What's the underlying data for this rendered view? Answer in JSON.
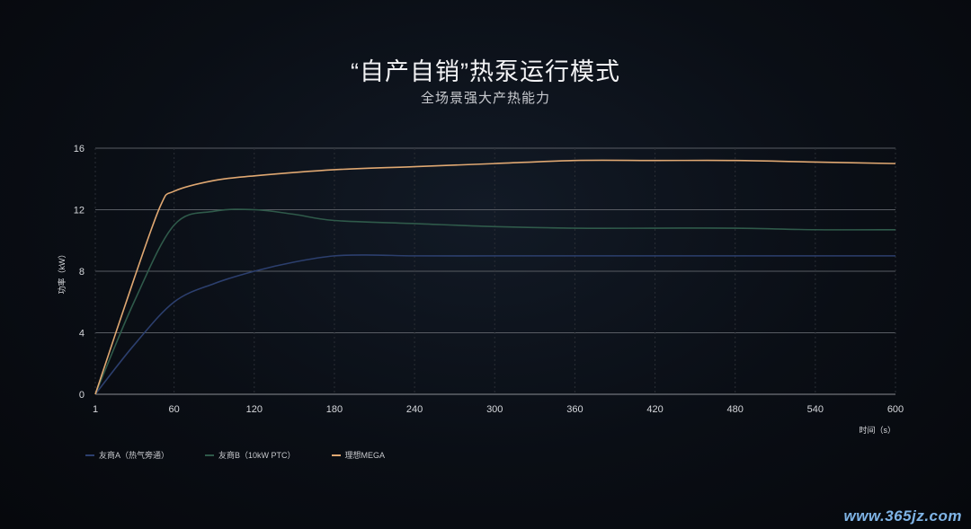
{
  "title": "“自产自销”热泵运行模式",
  "subtitle": "全场景强大产热能力",
  "watermark": "www.365jz.com",
  "chart_data": {
    "type": "line",
    "ylabel": "功率（kW）",
    "xlabel": "时间（s）",
    "x_ticks": [
      "1",
      "60",
      "120",
      "180",
      "240",
      "300",
      "360",
      "420",
      "480",
      "540",
      "600"
    ],
    "y_ticks": [
      "0",
      "4",
      "8",
      "12",
      "16"
    ],
    "xlim": [
      1,
      600
    ],
    "ylim": [
      0,
      16
    ],
    "grid": true,
    "legend_position": "bottom-left",
    "series": [
      {
        "name": "友商A（热气旁通）",
        "color": "#2c3f6e",
        "x": [
          1,
          30,
          60,
          90,
          120,
          150,
          180,
          210,
          240,
          300,
          360,
          420,
          480,
          540,
          600
        ],
        "y": [
          0,
          3.2,
          6.0,
          7.2,
          8.0,
          8.6,
          9.0,
          9.05,
          9.0,
          9.0,
          9.0,
          9.0,
          9.0,
          9.0,
          9.0
        ]
      },
      {
        "name": "友商B（10kW PTC）",
        "color": "#2f5a4a",
        "x": [
          1,
          30,
          60,
          90,
          120,
          150,
          180,
          240,
          300,
          360,
          420,
          480,
          540,
          600
        ],
        "y": [
          0,
          6.0,
          11.0,
          11.9,
          12.0,
          11.7,
          11.3,
          11.1,
          10.9,
          10.8,
          10.8,
          10.8,
          10.7,
          10.7
        ]
      },
      {
        "name": "理想MEGA",
        "color": "#e0a872",
        "x": [
          1,
          30,
          50,
          60,
          90,
          120,
          180,
          240,
          300,
          360,
          420,
          480,
          540,
          600
        ],
        "y": [
          0,
          7.5,
          12.3,
          13.2,
          13.9,
          14.2,
          14.6,
          14.8,
          15.0,
          15.2,
          15.2,
          15.2,
          15.1,
          15.0
        ]
      }
    ]
  }
}
